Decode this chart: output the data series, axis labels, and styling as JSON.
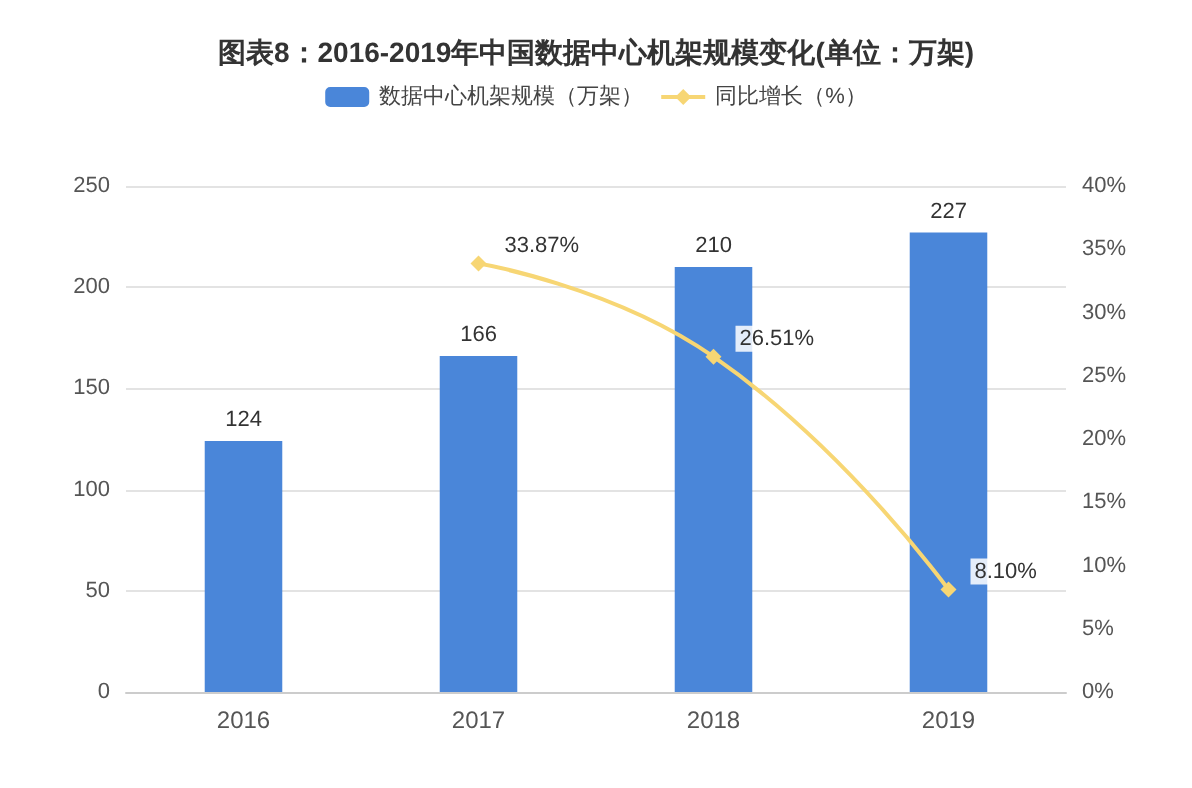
{
  "chart_data": {
    "type": "bar",
    "title": "图表8：2016-2019年中国数据中心机架规模变化(单位：万架)",
    "categories": [
      "2016",
      "2017",
      "2018",
      "2019"
    ],
    "series": [
      {
        "name": "数据中心机架规模（万架）",
        "color": "#4a86d9",
        "values": [
          124,
          166,
          210,
          227
        ]
      },
      {
        "name": "同比增长（%）",
        "type": "line",
        "axis": "y2",
        "color": "#f7d674",
        "values": [
          null,
          33.87,
          26.51,
          8.1
        ],
        "value_labels": [
          null,
          "33.87%",
          "26.51%",
          "8.10%"
        ]
      }
    ],
    "ylim": [
      0,
      250
    ],
    "yticks": [
      0,
      50,
      100,
      150,
      200,
      250
    ],
    "y2lim": [
      0,
      40
    ],
    "y2ticks": [
      {
        "value": 0,
        "label": "0%"
      },
      {
        "value": 5,
        "label": "5%"
      },
      {
        "value": 10,
        "label": "10%"
      },
      {
        "value": 15,
        "label": "15%"
      },
      {
        "value": 20,
        "label": "20%"
      },
      {
        "value": 25,
        "label": "25%"
      },
      {
        "value": 30,
        "label": "30%"
      },
      {
        "value": 35,
        "label": "35%"
      },
      {
        "value": 40,
        "label": "40%"
      }
    ],
    "grid": "y",
    "legend": "top",
    "marker": "diamond",
    "data_labels": true
  }
}
